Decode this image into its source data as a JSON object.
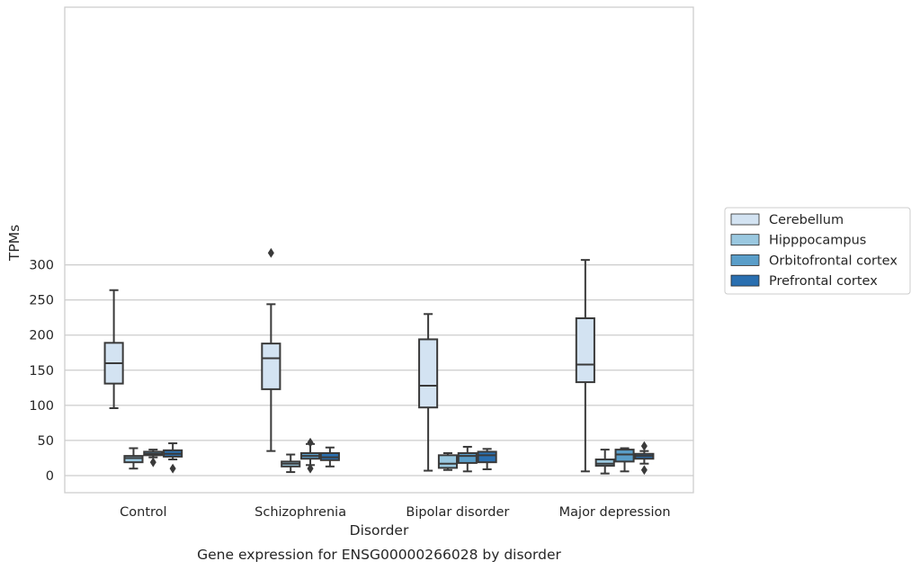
{
  "chart_data": {
    "type": "box",
    "title": "",
    "caption": "Gene expression for ENSG00000266028 by disorder",
    "xlabel": "Disorder",
    "ylabel": "TPMs",
    "ylim": [
      -12,
      333
    ],
    "yticks": [
      0,
      50,
      100,
      150,
      200,
      250,
      300
    ],
    "grid": true,
    "legend_position": "right",
    "categories": [
      "Control",
      "Schizophrenia",
      "Bipolar disorder",
      "Major depression"
    ],
    "series": [
      {
        "name": "Cerebellum",
        "color": "#d3e3f2",
        "boxes": [
          {
            "whislo": 96,
            "q1": 131,
            "med": 160,
            "q3": 189,
            "whishi": 264,
            "fliers": []
          },
          {
            "whislo": 35,
            "q1": 123,
            "med": 167,
            "q3": 188,
            "whishi": 244,
            "fliers": [
              317
            ]
          },
          {
            "whislo": 7,
            "q1": 97,
            "med": 128,
            "q3": 194,
            "whishi": 230,
            "fliers": []
          },
          {
            "whislo": 6,
            "q1": 133,
            "med": 158,
            "q3": 224,
            "whishi": 307,
            "fliers": []
          }
        ]
      },
      {
        "name": "Hipppocampus",
        "color": "#9ac8e0",
        "boxes": [
          {
            "whislo": 10,
            "q1": 19,
            "med": 25,
            "q3": 28,
            "whishi": 39,
            "fliers": []
          },
          {
            "whislo": 5,
            "q1": 13,
            "med": 17,
            "q3": 20,
            "whishi": 30,
            "fliers": []
          },
          {
            "whislo": 8,
            "q1": 11,
            "med": 17,
            "q3": 29,
            "whishi": 32,
            "fliers": []
          },
          {
            "whislo": 3,
            "q1": 14,
            "med": 17,
            "q3": 23,
            "whishi": 37,
            "fliers": []
          }
        ]
      },
      {
        "name": "Orbitofrontal cortex",
        "color": "#5a9ec9",
        "boxes": [
          {
            "whislo": 26,
            "q1": 29,
            "med": 31,
            "q3": 34,
            "whishi": 37,
            "fliers": [
              19
            ]
          },
          {
            "whislo": 15,
            "q1": 24,
            "med": 28,
            "q3": 32,
            "whishi": 45,
            "fliers": [
              10,
              47
            ]
          },
          {
            "whislo": 6,
            "q1": 18,
            "med": 28,
            "q3": 32,
            "whishi": 41,
            "fliers": []
          },
          {
            "whislo": 6,
            "q1": 20,
            "med": 30,
            "q3": 37,
            "whishi": 39,
            "fliers": []
          }
        ]
      },
      {
        "name": "Prefrontal cortex",
        "color": "#2a6fb0",
        "boxes": [
          {
            "whislo": 23,
            "q1": 27,
            "med": 31,
            "q3": 36,
            "whishi": 46,
            "fliers": [
              10
            ]
          },
          {
            "whislo": 13,
            "q1": 22,
            "med": 26,
            "q3": 32,
            "whishi": 40,
            "fliers": []
          },
          {
            "whislo": 9,
            "q1": 19,
            "med": 29,
            "q3": 34,
            "whishi": 38,
            "fliers": []
          },
          {
            "whislo": 17,
            "q1": 24,
            "med": 28,
            "q3": 31,
            "whishi": 35,
            "fliers": [
              8,
              42
            ]
          }
        ]
      }
    ]
  }
}
